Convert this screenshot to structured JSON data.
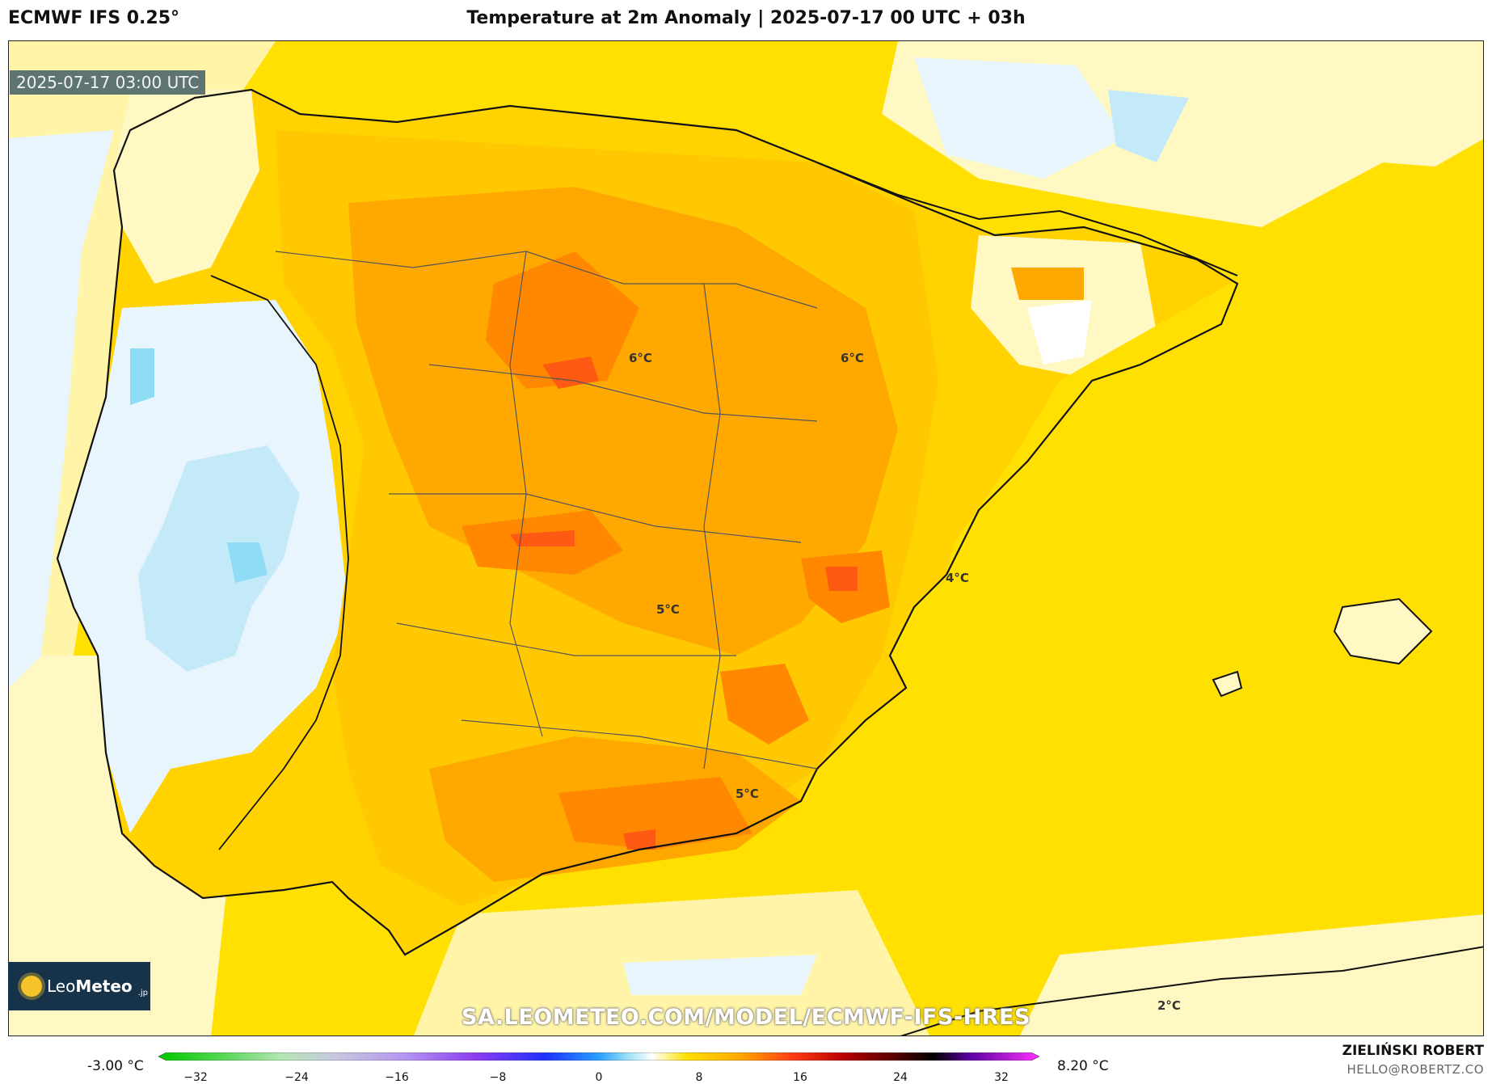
{
  "header": {
    "model": "ECMWF IFS 0.25°",
    "title": "Temperature at 2m Anomaly | 2025-07-17 00 UTC + 03h"
  },
  "map": {
    "valid_time": "2025-07-17 03:00 UTC",
    "region": "Iberian Peninsula",
    "watermark_url": "SA.LEOMETEO.COM/MODEL/ECMWF-IFS-HRES",
    "logo": {
      "prefix": "Leo",
      "bold": "Meteo",
      "suffix": ".jp"
    },
    "contour_labels": [
      "6°C",
      "6°C",
      "4°C",
      "5°C",
      "5°C",
      "2°C"
    ]
  },
  "colorbar": {
    "min_label": "-3.00 °C",
    "max_label": "8.20 °C",
    "ticks": [
      "−32",
      "−24",
      "−16",
      "−8",
      "0",
      "8",
      "16",
      "24",
      "32"
    ],
    "range": [
      -32,
      32
    ]
  },
  "credit": {
    "author": "ZIELIŃSKI ROBERT",
    "email": "HELLO@ROBERTZ.CO"
  },
  "colors": {
    "sea_warm": "#fff4a8",
    "light_yellow": "#fff8c2",
    "yellow": "#ffe000",
    "gold": "#ffc800",
    "orange": "#ffa900",
    "dark_orange": "#ff8800",
    "red_orange": "#ff5a14",
    "pale_blue": "#e8f5fc",
    "light_blue": "#c4eafa",
    "cyan": "#8fdcf5"
  }
}
